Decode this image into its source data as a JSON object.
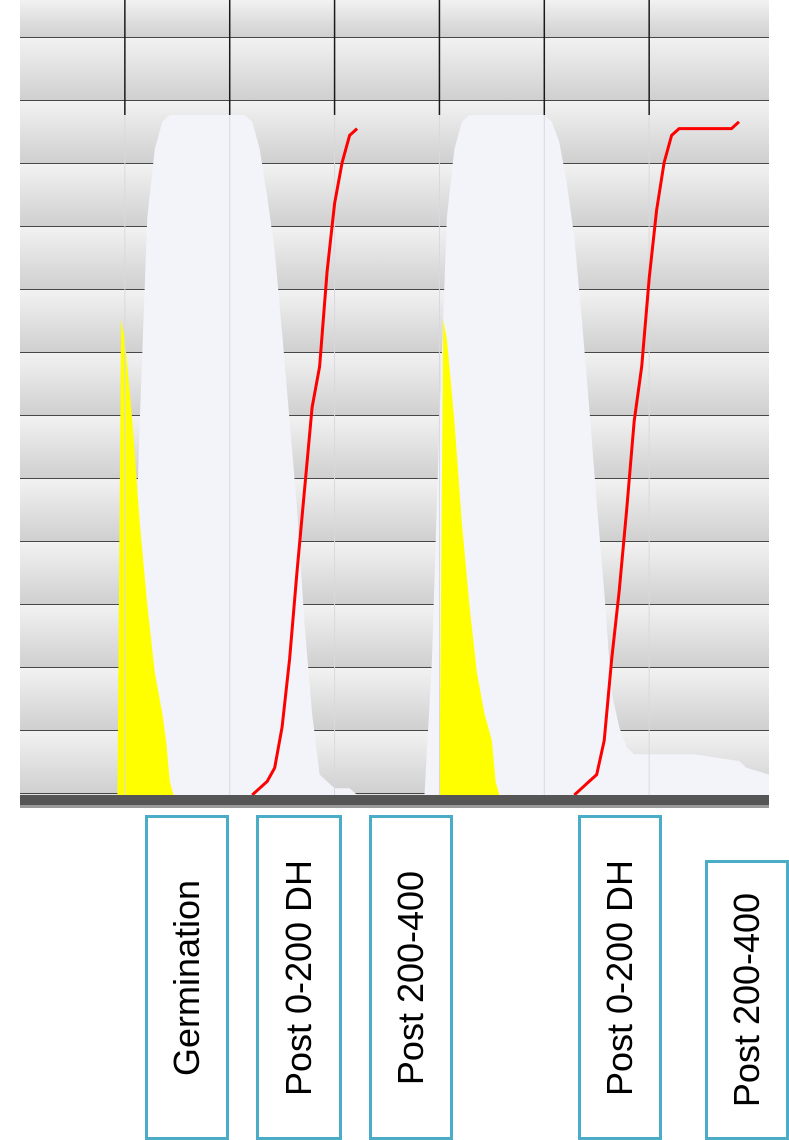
{
  "chart_data": {
    "type": "area",
    "x_range": [
      0,
      100
    ],
    "y_range": [
      0,
      100
    ],
    "grid": true,
    "legend": "none",
    "series": [
      {
        "kind": "area",
        "color": "#f3f3fa",
        "points": [
          [
            14,
            0
          ],
          [
            15,
            20
          ],
          [
            16,
            55
          ],
          [
            17,
            85
          ],
          [
            18,
            95
          ],
          [
            19,
            99
          ],
          [
            20,
            100
          ],
          [
            30,
            100
          ],
          [
            31,
            99
          ],
          [
            32,
            95
          ],
          [
            33,
            88
          ],
          [
            34,
            80
          ],
          [
            35,
            68
          ],
          [
            36,
            55
          ],
          [
            37,
            42
          ],
          [
            38,
            25
          ],
          [
            39,
            12
          ],
          [
            40,
            3
          ],
          [
            41,
            2
          ],
          [
            42,
            1
          ],
          [
            44,
            1
          ],
          [
            45,
            0
          ],
          [
            54,
            0
          ],
          [
            55,
            20
          ],
          [
            56,
            55
          ],
          [
            57,
            85
          ],
          [
            58,
            95
          ],
          [
            59,
            99
          ],
          [
            60,
            100
          ],
          [
            70,
            100
          ],
          [
            71,
            99
          ],
          [
            72,
            96
          ],
          [
            73,
            90
          ],
          [
            74,
            82
          ],
          [
            75,
            70
          ],
          [
            76,
            57
          ],
          [
            77,
            43
          ],
          [
            78,
            30
          ],
          [
            79,
            15
          ],
          [
            80,
            10
          ],
          [
            81,
            7
          ],
          [
            82,
            6
          ],
          [
            84,
            6
          ],
          [
            90,
            6
          ],
          [
            96,
            5
          ],
          [
            97,
            4
          ],
          [
            100,
            3
          ]
        ]
      },
      {
        "kind": "area",
        "color": "#ffff00",
        "points": [
          [
            13,
            0
          ],
          [
            13.5,
            70
          ],
          [
            14,
            67
          ],
          [
            15,
            55
          ],
          [
            16,
            40
          ],
          [
            17,
            28
          ],
          [
            18,
            18
          ],
          [
            19,
            12
          ],
          [
            19.5,
            8
          ],
          [
            20,
            2
          ],
          [
            20.5,
            0
          ],
          [
            56,
            0
          ],
          [
            56.5,
            70
          ],
          [
            57,
            67
          ],
          [
            58,
            55
          ],
          [
            59,
            40
          ],
          [
            60,
            28
          ],
          [
            61,
            18
          ],
          [
            62,
            12
          ],
          [
            63,
            8
          ],
          [
            63.5,
            2
          ],
          [
            64,
            0
          ]
        ]
      },
      {
        "kind": "line",
        "color": "#ff0000",
        "points": [
          [
            31,
            0
          ],
          [
            32,
            1
          ],
          [
            33,
            2
          ],
          [
            34,
            4
          ],
          [
            35,
            10
          ],
          [
            36,
            20
          ],
          [
            37,
            33
          ],
          [
            38,
            45
          ],
          [
            39,
            57
          ],
          [
            40,
            63
          ],
          [
            41,
            77
          ],
          [
            42,
            87
          ],
          [
            43,
            93
          ],
          [
            44,
            97
          ],
          [
            45,
            98
          ]
        ]
      },
      {
        "kind": "line",
        "color": "#ff0000",
        "points": [
          [
            74,
            0
          ],
          [
            75,
            1
          ],
          [
            76,
            2
          ],
          [
            77,
            3
          ],
          [
            78,
            8
          ],
          [
            79,
            20
          ],
          [
            80,
            30
          ],
          [
            81,
            42
          ],
          [
            82,
            55
          ],
          [
            83,
            63
          ],
          [
            84,
            76
          ],
          [
            85,
            86
          ],
          [
            86,
            93
          ],
          [
            87,
            97
          ],
          [
            88,
            98
          ],
          [
            95,
            98
          ],
          [
            96,
            99
          ]
        ]
      }
    ],
    "dividers_x": [
      14,
      28,
      42,
      56,
      70,
      84
    ]
  },
  "stage_labels": [
    {
      "text": "Germination"
    },
    {
      "text": "Post 0-200 DH"
    },
    {
      "text": "Post 200-400"
    },
    {
      "text": "Post 0-200 DH"
    },
    {
      "text": "Post 200-400"
    }
  ]
}
